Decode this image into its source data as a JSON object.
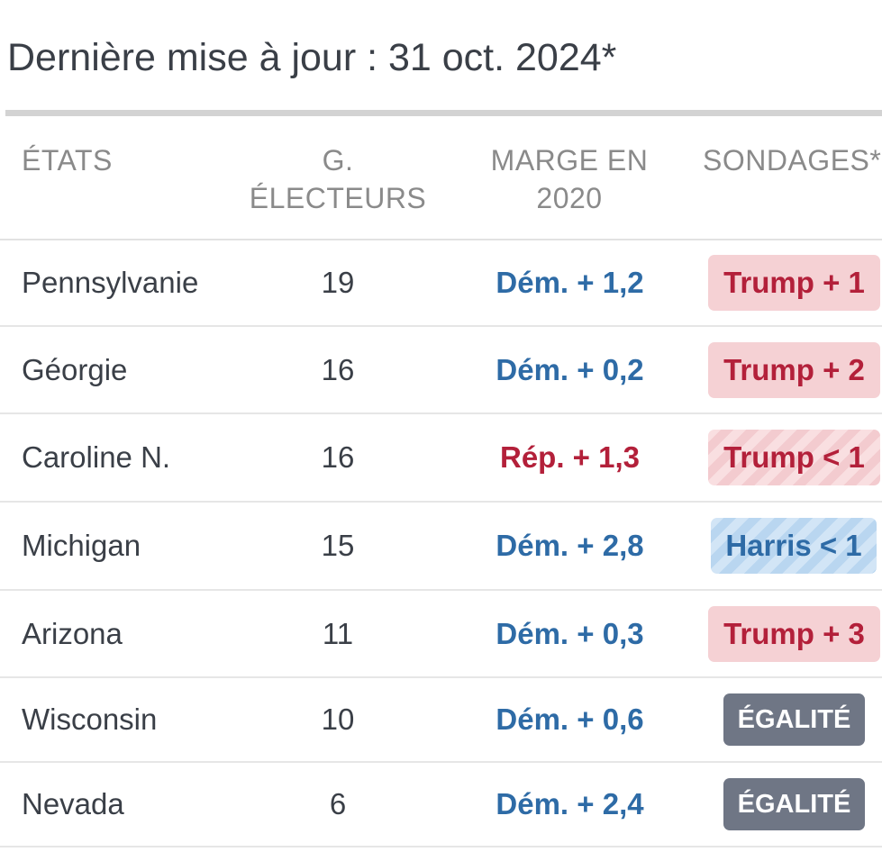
{
  "updated": "Dernière mise à jour : 31 oct. 2024*",
  "headers": {
    "state": "ÉTATS",
    "electors_line1": "G.",
    "electors_line2": "ÉLECTEURS",
    "margin_line1": "MARGE EN",
    "margin_line2": "2020",
    "polls": "SONDAGES*"
  },
  "colors": {
    "dem": "#2e6ba6",
    "rep": "#b3203a",
    "trump_badge_bg": "#f5d1d4",
    "harris_badge_bg": "#c5ddf3",
    "tie_badge_bg": "#6f7685"
  },
  "rows": [
    {
      "state": "Pennsylvanie",
      "electors": "19",
      "margin_2020": "Dém. + 1,2",
      "margin_party": "dem",
      "poll": "Trump + 1",
      "poll_kind": "trump"
    },
    {
      "state": "Géorgie",
      "electors": "16",
      "margin_2020": "Dém. + 0,2",
      "margin_party": "dem",
      "poll": "Trump + 2",
      "poll_kind": "trump"
    },
    {
      "state": "Caroline N.",
      "electors": "16",
      "margin_2020": "Rép. + 1,3",
      "margin_party": "rep",
      "poll": "Trump < 1",
      "poll_kind": "trump-lean"
    },
    {
      "state": "Michigan",
      "electors": "15",
      "margin_2020": "Dém. + 2,8",
      "margin_party": "dem",
      "poll": "Harris < 1",
      "poll_kind": "harris-lean"
    },
    {
      "state": "Arizona",
      "electors": "11",
      "margin_2020": "Dém. + 0,3",
      "margin_party": "dem",
      "poll": "Trump + 3",
      "poll_kind": "trump"
    },
    {
      "state": "Wisconsin",
      "electors": "10",
      "margin_2020": "Dém. + 0,6",
      "margin_party": "dem",
      "poll": "ÉGALITÉ",
      "poll_kind": "tie"
    },
    {
      "state": "Nevada",
      "electors": "6",
      "margin_2020": "Dém. + 2,4",
      "margin_party": "dem",
      "poll": "ÉGALITÉ",
      "poll_kind": "tie"
    }
  ]
}
